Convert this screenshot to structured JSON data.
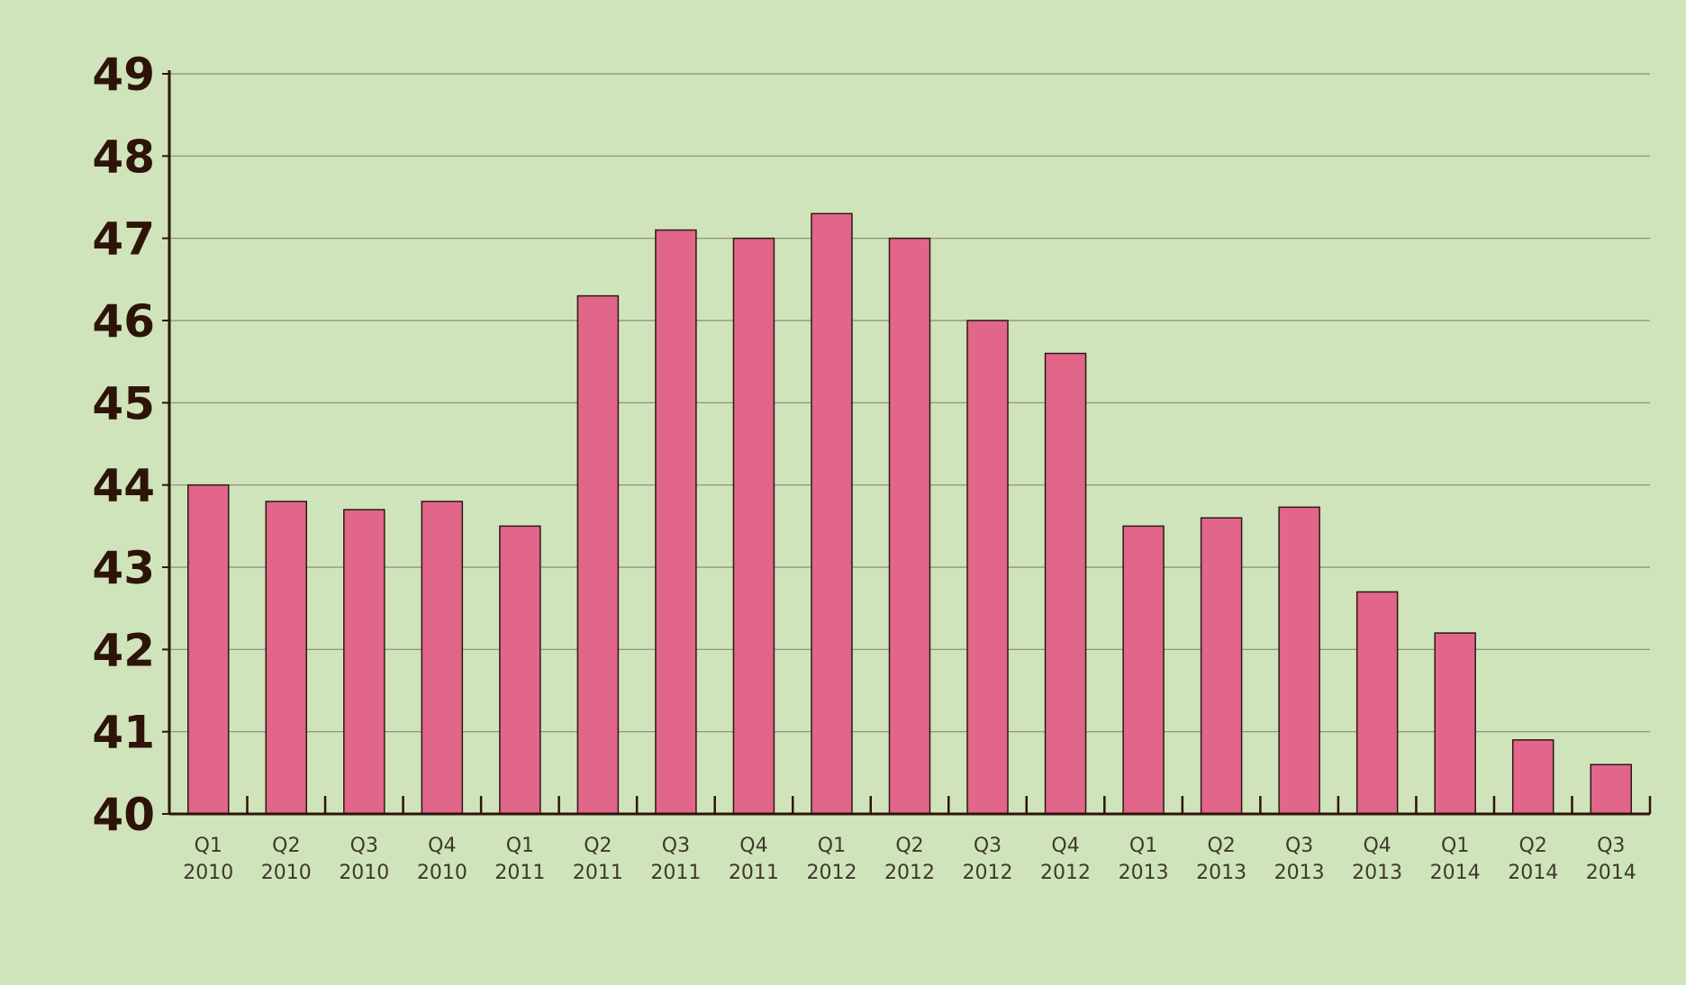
{
  "chart_data": {
    "type": "bar",
    "categories": [
      [
        "Q1",
        "2010"
      ],
      [
        "Q2",
        "2010"
      ],
      [
        "Q3",
        "2010"
      ],
      [
        "Q4",
        "2010"
      ],
      [
        "Q1",
        "2011"
      ],
      [
        "Q2",
        "2011"
      ],
      [
        "Q3",
        "2011"
      ],
      [
        "Q4",
        "2011"
      ],
      [
        "Q1",
        "2012"
      ],
      [
        "Q2",
        "2012"
      ],
      [
        "Q3",
        "2012"
      ],
      [
        "Q4",
        "2012"
      ],
      [
        "Q1",
        "2013"
      ],
      [
        "Q2",
        "2013"
      ],
      [
        "Q3",
        "2013"
      ],
      [
        "Q4",
        "2013"
      ],
      [
        "Q1",
        "2014"
      ],
      [
        "Q2",
        "2014"
      ],
      [
        "Q3",
        "2014"
      ]
    ],
    "values": [
      44.0,
      43.8,
      43.7,
      43.8,
      43.5,
      46.3,
      47.1,
      47.0,
      47.3,
      47.0,
      46.0,
      45.6,
      43.5,
      43.6,
      43.73,
      42.7,
      42.2,
      40.9,
      40.6
    ],
    "yticks": [
      "40",
      "41",
      "42",
      "43",
      "44",
      "45",
      "46",
      "47",
      "48",
      "49"
    ],
    "ylim": [
      40,
      49
    ],
    "grid": true,
    "title": "",
    "xlabel": "",
    "ylabel": "",
    "colors": {
      "background": "#d0e4bb",
      "bar": "#e2658a",
      "bar_stroke": "#2a1a12",
      "axis": "#2e1408",
      "grid": "#8a8a72"
    }
  }
}
